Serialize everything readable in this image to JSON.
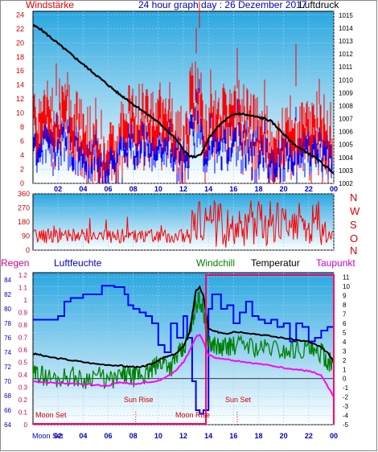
{
  "header": {
    "left_title": "Windstärke",
    "center_title": "24 hour graph day : 26 Dezember 2017",
    "right_title": "Luftdruck"
  },
  "direction_labels": [
    "N",
    "W",
    "S",
    "O",
    "N"
  ],
  "bottom_header": {
    "regen": "Regen",
    "luftfeuchte": "Luftfeuchte",
    "windchill": "Windchill",
    "temperatur": "Temperatur",
    "taupunkt": "Taupunkt"
  },
  "events": {
    "moon_set_1": "Moon Set",
    "sun_rise": "Sun Rise",
    "moon_rise": "Moon Rise",
    "sun_set": "Sun Set",
    "moon_set_2": "Moon Set"
  },
  "colors": {
    "panel_top": "#2aa7e0",
    "panel_bottom": "#ffffff",
    "wind_gust": "#ff0000",
    "wind_avg": "#0000ff",
    "pressure": "#000000",
    "direction": "#ff0000",
    "humidity": "#0000ff",
    "temperature": "#000000",
    "windchill": "#008000",
    "dewpoint": "#ff00ff",
    "rain": "#ff0066"
  },
  "chart_data": [
    {
      "type": "line",
      "x_ticks": [
        "02",
        "04",
        "06",
        "08",
        "10",
        "12",
        "14",
        "16",
        "18",
        "20",
        "22",
        "00"
      ],
      "y_left_ticks": [
        "0",
        "2",
        "4",
        "6",
        "8",
        "10",
        "12",
        "14",
        "16",
        "18",
        "20",
        "22",
        "24"
      ],
      "y_right_ticks": [
        "1002",
        "1003",
        "1004",
        "1005",
        "1006",
        "1007",
        "1008",
        "1009",
        "1010",
        "1011",
        "1012",
        "1013",
        "1014",
        "1015"
      ],
      "ylim_left": [
        0,
        24.5
      ],
      "ylim_right": [
        1002,
        1015.3
      ],
      "xlim": [
        0,
        24
      ],
      "series": [
        {
          "axis": "right",
          "x": [
            0,
            0.5,
            1,
            1.5,
            2,
            2.5,
            3,
            3.5,
            4,
            4.5,
            5,
            5.5,
            6,
            6.5,
            7,
            7.5,
            8,
            8.5,
            9,
            9.5,
            10,
            10.5,
            11,
            11.5,
            12,
            12.5,
            13,
            13.5,
            14,
            14.5,
            15,
            15.5,
            16,
            16.5,
            17,
            17.5,
            18,
            18.5,
            19,
            19.5,
            20,
            20.5,
            21,
            21.5,
            22,
            22.5,
            23,
            23.5,
            24
          ],
          "values": [
            1014.2,
            1014,
            1013.6,
            1013.2,
            1012.8,
            1012.4,
            1012,
            1011.6,
            1011.2,
            1010.8,
            1010.4,
            1010,
            1009.6,
            1009.2,
            1008.8,
            1008.5,
            1008.1,
            1007.8,
            1007.4,
            1007.1,
            1006.7,
            1006.3,
            1005.8,
            1005.3,
            1004.6,
            1004.1,
            1004,
            1004.4,
            1005.4,
            1006.1,
            1006.6,
            1007,
            1007.3,
            1007.4,
            1007.3,
            1007.2,
            1007.1,
            1007,
            1006.8,
            1006.3,
            1005.8,
            1005.3,
            1004.9,
            1004.6,
            1004.3,
            1004,
            1003.6,
            1003.2,
            1002.8
          ]
        }
      ]
    },
    {
      "type": "line",
      "y_ticks": [
        "360",
        "270",
        "180",
        "90",
        "0"
      ],
      "ylim": [
        0,
        360
      ],
      "xlim": [
        0,
        24
      ]
    },
    {
      "type": "line",
      "x_ticks": [
        "02",
        "04",
        "06",
        "08",
        "10",
        "12",
        "14",
        "16",
        "18",
        "20",
        "22",
        "00"
      ],
      "regen_ticks": [
        "0",
        "0.1",
        "0.2",
        "0.3",
        "0.4",
        "0.5",
        "0.6",
        "0.7",
        "0.8",
        "0.9",
        "1",
        "1.1",
        "1.2"
      ],
      "humidity_ticks": [
        "64",
        "66",
        "68",
        "70",
        "72",
        "74",
        "76",
        "78",
        "80",
        "82",
        "84"
      ],
      "temp_ticks": [
        "11",
        "10",
        "9",
        "8",
        "7",
        "6",
        "5",
        "4",
        "3",
        "2",
        "1",
        "0",
        "-1",
        "-2",
        "-3",
        "-4",
        "-5"
      ],
      "ylim_temp": [
        -5,
        11.5
      ],
      "ylim_humidity": [
        64,
        85
      ],
      "xlim": [
        0,
        24
      ],
      "series": [
        {
          "name": "Luftfeuchte",
          "axis": "humidity",
          "x": [
            0,
            0.3,
            1.5,
            2,
            2.5,
            3,
            4,
            5,
            5.5,
            6,
            6.5,
            7,
            7.3,
            7.6,
            8,
            8.5,
            9,
            9.5,
            10,
            10.5,
            11,
            11.5,
            12,
            12.3,
            12.7,
            13,
            13.3,
            13.6,
            14,
            14.3,
            15,
            15.5,
            16,
            16.5,
            17,
            17.5,
            18,
            18.5,
            19,
            19.5,
            20,
            20.5,
            21,
            21.5,
            22,
            22.5,
            23,
            23.5,
            24
          ],
          "values": [
            78.5,
            78.5,
            78.5,
            79,
            81,
            81.5,
            82,
            82,
            83.2,
            83.2,
            83,
            83,
            82,
            80.5,
            80,
            79.5,
            79,
            78,
            75,
            74,
            78,
            76,
            79,
            76,
            70,
            66,
            65.5,
            66,
            80,
            82,
            80,
            80.5,
            78,
            79.5,
            81,
            79,
            78.5,
            78,
            78.5,
            77.5,
            78,
            75.5,
            78,
            77.5,
            75.5,
            76,
            77,
            77.5,
            78.5
          ]
        },
        {
          "name": "Temperatur",
          "axis": "temp",
          "x": [
            0,
            0.5,
            1,
            2,
            3,
            4,
            5,
            6,
            7,
            7.5,
            8,
            8.5,
            9,
            9.5,
            10,
            10.5,
            11,
            11.5,
            12,
            12.5,
            13,
            13.3,
            13.6,
            14,
            14.5,
            15,
            15.5,
            16,
            17,
            18,
            19,
            20,
            21,
            22,
            22.5,
            23,
            23.5,
            24
          ],
          "values": [
            2.7,
            2.6,
            2.4,
            2.2,
            2,
            1.8,
            1.6,
            1.5,
            1.4,
            1.3,
            1.3,
            1.2,
            1.4,
            1.6,
            2,
            2.3,
            2.5,
            2.8,
            3.5,
            5,
            9.5,
            9.9,
            9,
            5.4,
            5.1,
            5,
            4.9,
            5.1,
            5,
            4.8,
            4.6,
            4.4,
            4.2,
            4,
            3.7,
            3.4,
            2.8,
            1.8
          ]
        },
        {
          "name": "Windchill",
          "axis": "temp",
          "x": [
            0,
            0.5,
            1,
            2,
            3,
            4,
            5,
            6,
            7,
            7.5,
            8,
            8.5,
            9,
            9.5,
            10,
            10.5,
            11,
            11.5,
            12,
            12.5,
            13,
            13.3,
            13.6,
            14,
            14.5,
            15,
            15.5,
            16,
            17,
            18,
            19,
            20,
            21,
            22,
            22.5,
            23,
            23.5,
            24
          ],
          "values": [
            0.3,
            0.6,
            0.2,
            0,
            0.4,
            -0.2,
            0.5,
            -0.3,
            0.2,
            0.4,
            0.1,
            0.5,
            0.3,
            1,
            1.5,
            2,
            1.2,
            2.5,
            3,
            5,
            8,
            8.6,
            7.5,
            3.5,
            3.8,
            3.2,
            3.6,
            3.5,
            3.8,
            3.2,
            3.4,
            3,
            3.2,
            3.3,
            2.5,
            2.8,
            2,
            1.5
          ]
        },
        {
          "name": "Taupunkt",
          "axis": "temp",
          "x": [
            0,
            1,
            2,
            3,
            4,
            5,
            6,
            6.5,
            7,
            7.5,
            8,
            8.5,
            9,
            9.5,
            10,
            10.5,
            11,
            11.5,
            12,
            12.5,
            13,
            13.3,
            13.6,
            14,
            14.5,
            15,
            16,
            17,
            18,
            19,
            20,
            21,
            21.5,
            22,
            22.5,
            23,
            23.5,
            24
          ],
          "values": [
            -0.3,
            -0.4,
            -0.5,
            -0.5,
            -0.6,
            -0.7,
            -0.8,
            -0.5,
            -0.4,
            -0.5,
            -0.6,
            -0.5,
            -0.4,
            -0.4,
            -0.2,
            0,
            0.5,
            1,
            1.8,
            3,
            4.5,
            4.8,
            4,
            2.6,
            2.3,
            2.2,
            2,
            1.8,
            1.6,
            1.4,
            1.2,
            1,
            0.9,
            0.8,
            0.6,
            0.3,
            -0.8,
            -2
          ]
        }
      ]
    }
  ]
}
